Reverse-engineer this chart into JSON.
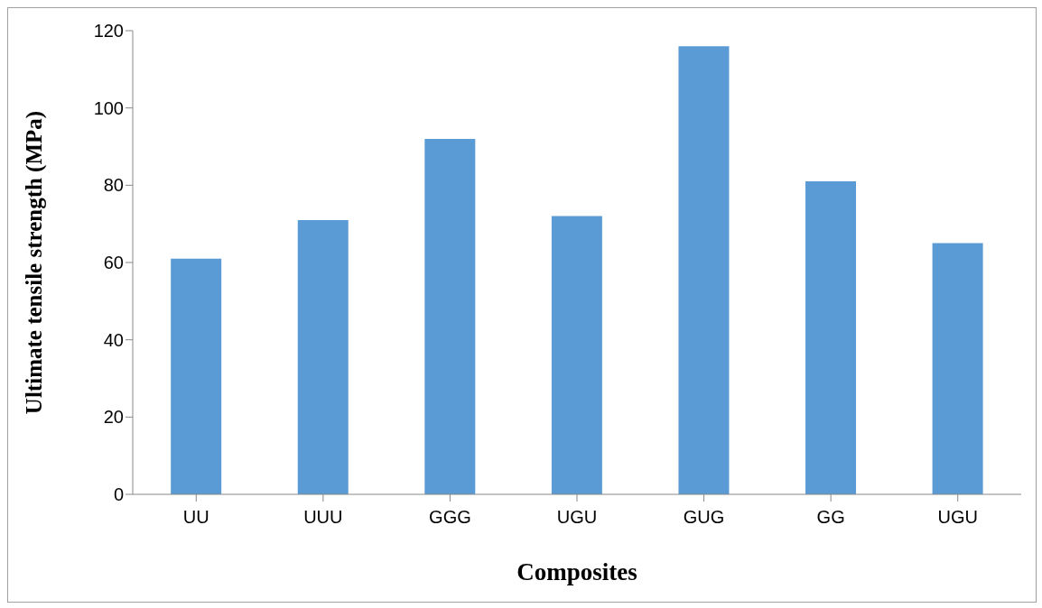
{
  "chart_data": {
    "type": "bar",
    "xlabel": "Composites",
    "ylabel": "Ultimate tensile strength (MPa)",
    "categories": [
      "UU",
      "UUU",
      "GGG",
      "UGU",
      "GUG",
      "GG",
      "UGU"
    ],
    "values": [
      61,
      71,
      92,
      72,
      116,
      81,
      65
    ],
    "color": "#5b9bd5",
    "ylim": [
      0,
      120
    ],
    "yticks": [
      0,
      20,
      40,
      60,
      80,
      100,
      120
    ],
    "grid": false,
    "legend": false
  }
}
